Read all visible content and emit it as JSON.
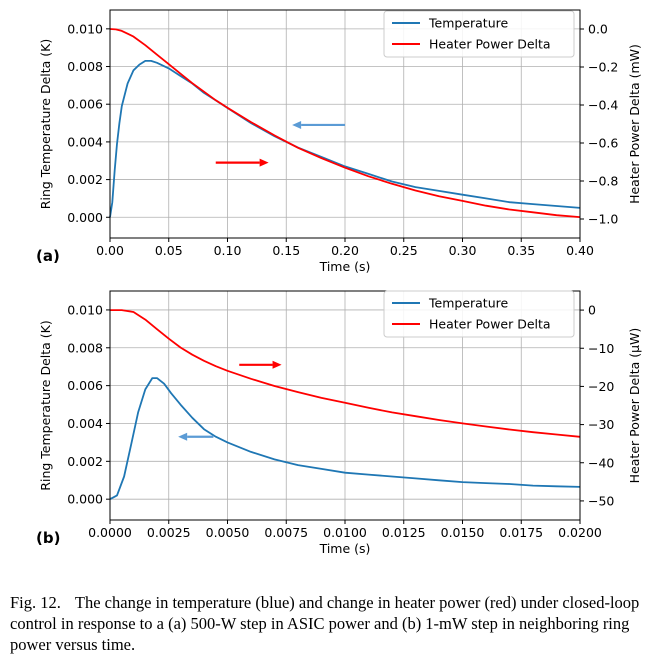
{
  "chart_data": [
    {
      "type": "line",
      "panel_label": "(a)",
      "xlabel": "Time (s)",
      "ylabel": "Ring Temperature Delta (K)",
      "y2label": "Heater Power Delta (mW)",
      "xlim": [
        0,
        0.4
      ],
      "ylim": [
        -0.0011,
        0.011
      ],
      "y2lim": [
        -1.1,
        0.1
      ],
      "xticks": [
        0,
        0.05,
        0.1,
        0.15,
        0.2,
        0.25,
        0.3,
        0.35,
        0.4
      ],
      "xtick_labels": [
        "0.00",
        "0.05",
        "0.10",
        "0.15",
        "0.20",
        "0.25",
        "0.30",
        "0.35",
        "0.40"
      ],
      "yticks": [
        0,
        0.002,
        0.004,
        0.006,
        0.008,
        0.01
      ],
      "ytick_labels": [
        "0.000",
        "0.002",
        "0.004",
        "0.006",
        "0.008",
        "0.010"
      ],
      "y2ticks": [
        0,
        -0.2,
        -0.4,
        -0.6,
        -0.8,
        -1.0
      ],
      "y2tick_labels": [
        "0.0",
        "−0.2",
        "−0.4",
        "−0.6",
        "−0.8",
        "−1.0"
      ],
      "grid": true,
      "legend": "top-right",
      "series": [
        {
          "name": "Temperature",
          "axis": "left",
          "color": "#1f77b4",
          "x": [
            0,
            0.002,
            0.004,
            0.006,
            0.008,
            0.01,
            0.015,
            0.02,
            0.025,
            0.03,
            0.035,
            0.04,
            0.05,
            0.06,
            0.07,
            0.08,
            0.09,
            0.1,
            0.12,
            0.14,
            0.16,
            0.18,
            0.2,
            0.22,
            0.24,
            0.26,
            0.28,
            0.3,
            0.32,
            0.34,
            0.36,
            0.38,
            0.4
          ],
          "y": [
            0,
            0.0008,
            0.0025,
            0.0039,
            0.005,
            0.0059,
            0.0071,
            0.0078,
            0.0081,
            0.0083,
            0.0083,
            0.0082,
            0.0079,
            0.0075,
            0.0071,
            0.0066,
            0.0062,
            0.0058,
            0.005,
            0.0043,
            0.0037,
            0.0032,
            0.0027,
            0.0023,
            0.0019,
            0.0016,
            0.0014,
            0.0012,
            0.001,
            0.0008,
            0.0007,
            0.0006,
            0.0005
          ]
        },
        {
          "name": "Heater Power Delta",
          "axis": "right",
          "color": "#ff0000",
          "x": [
            0,
            0.005,
            0.01,
            0.02,
            0.03,
            0.04,
            0.05,
            0.06,
            0.07,
            0.08,
            0.09,
            0.1,
            0.12,
            0.14,
            0.16,
            0.18,
            0.2,
            0.22,
            0.24,
            0.26,
            0.28,
            0.3,
            0.32,
            0.34,
            0.36,
            0.38,
            0.4
          ],
          "y": [
            0,
            -0.002,
            -0.01,
            -0.04,
            -0.085,
            -0.135,
            -0.185,
            -0.235,
            -0.285,
            -0.33,
            -0.375,
            -0.415,
            -0.49,
            -0.56,
            -0.625,
            -0.68,
            -0.73,
            -0.775,
            -0.815,
            -0.85,
            -0.88,
            -0.905,
            -0.93,
            -0.95,
            -0.965,
            -0.98,
            -0.99
          ]
        }
      ],
      "arrows": [
        {
          "direction": "left",
          "color": "#5b9bd5",
          "from": [
            0.2,
            0.0049
          ],
          "to": [
            0.155,
            0.0049
          ]
        },
        {
          "direction": "right",
          "color": "#ff0000",
          "from": [
            0.09,
            0.0029
          ],
          "to": [
            0.135,
            0.0029
          ]
        }
      ]
    },
    {
      "type": "line",
      "panel_label": "(b)",
      "xlabel": "Time (s)",
      "ylabel": "Ring Temperature Delta (K)",
      "y2label": "Heater Power Delta (μW)",
      "xlim": [
        0,
        0.02
      ],
      "ylim": [
        -0.0011,
        0.011
      ],
      "y2lim": [
        -55,
        5
      ],
      "xticks": [
        0,
        0.0025,
        0.005,
        0.0075,
        0.01,
        0.0125,
        0.015,
        0.0175,
        0.02
      ],
      "xtick_labels": [
        "0.0000",
        "0.0025",
        "0.0050",
        "0.0075",
        "0.0100",
        "0.0125",
        "0.0150",
        "0.0175",
        "0.0200"
      ],
      "yticks": [
        0,
        0.002,
        0.004,
        0.006,
        0.008,
        0.01
      ],
      "ytick_labels": [
        "0.000",
        "0.002",
        "0.004",
        "0.006",
        "0.008",
        "0.010"
      ],
      "y2ticks": [
        0,
        -10,
        -20,
        -30,
        -40,
        -50
      ],
      "y2tick_labels": [
        "0",
        "−10",
        "−20",
        "−30",
        "−40",
        "−50"
      ],
      "grid": true,
      "legend": "top-right",
      "series": [
        {
          "name": "Temperature",
          "axis": "left",
          "color": "#1f77b4",
          "x": [
            0,
            0.0003,
            0.0006,
            0.0009,
            0.0012,
            0.0015,
            0.0018,
            0.002,
            0.0023,
            0.0026,
            0.003,
            0.0035,
            0.004,
            0.0045,
            0.005,
            0.006,
            0.007,
            0.008,
            0.009,
            0.01,
            0.011,
            0.012,
            0.013,
            0.014,
            0.015,
            0.016,
            0.017,
            0.018,
            0.019,
            0.02
          ],
          "y": [
            0,
            0.0002,
            0.0012,
            0.0029,
            0.0046,
            0.0058,
            0.0064,
            0.0064,
            0.0061,
            0.0056,
            0.005,
            0.0043,
            0.0037,
            0.0033,
            0.003,
            0.0025,
            0.0021,
            0.0018,
            0.0016,
            0.0014,
            0.0013,
            0.0012,
            0.0011,
            0.001,
            0.0009,
            0.00085,
            0.0008,
            0.00072,
            0.00068,
            0.00065
          ]
        },
        {
          "name": "Heater Power Delta",
          "axis": "right",
          "color": "#ff0000",
          "x": [
            0,
            0.0005,
            0.001,
            0.0015,
            0.002,
            0.0025,
            0.003,
            0.0035,
            0.004,
            0.0045,
            0.005,
            0.006,
            0.007,
            0.008,
            0.009,
            0.01,
            0.011,
            0.012,
            0.013,
            0.014,
            0.015,
            0.016,
            0.017,
            0.018,
            0.019,
            0.02
          ],
          "y": [
            0,
            0,
            -0.5,
            -2.5,
            -5,
            -7.5,
            -9.8,
            -11.7,
            -13.3,
            -14.7,
            -15.9,
            -18,
            -19.9,
            -21.5,
            -23,
            -24.3,
            -25.6,
            -26.8,
            -27.8,
            -28.8,
            -29.7,
            -30.5,
            -31.3,
            -32,
            -32.6,
            -33.2
          ]
        }
      ],
      "arrows": [
        {
          "direction": "left",
          "color": "#5b9bd5",
          "from": [
            0.0044,
            0.0033
          ],
          "to": [
            0.0029,
            0.0033
          ]
        },
        {
          "direction": "right",
          "color": "#ff0000",
          "from": [
            0.0055,
            0.0071
          ],
          "to": [
            0.0073,
            0.0071
          ]
        }
      ]
    }
  ],
  "caption": {
    "figure_label": "Fig. 12.",
    "text": "The change in temperature (blue) and change in heater power (red) under closed-loop control in response to a (a) 500-W step in ASIC power and (b) 1-mW step in neighboring ring power versus time."
  }
}
